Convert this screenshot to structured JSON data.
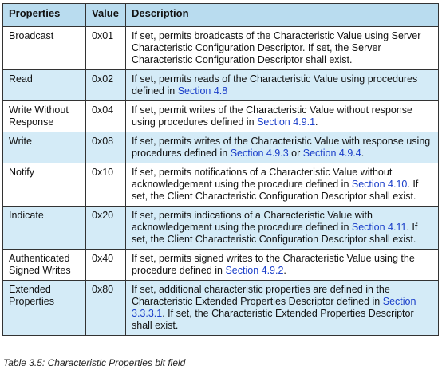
{
  "table": {
    "headers": {
      "properties": "Properties",
      "value": "Value",
      "description": "Description"
    },
    "rows": [
      {
        "property": "Broadcast",
        "value": "0x01",
        "desc": [
          {
            "t": "If set, permits broadcasts of the Characteristic Value using Server Characteristic Configuration Descriptor. If set, the Server Characteristic Configuration Descriptor shall exist."
          }
        ]
      },
      {
        "property": "Read",
        "value": "0x02",
        "desc": [
          {
            "t": "If set, permits reads of the Characteristic Value using procedures defined in "
          },
          {
            "t": "Section 4.8",
            "link": true
          }
        ]
      },
      {
        "property": "Write Without Response",
        "value": "0x04",
        "desc": [
          {
            "t": "If set, permit writes of the Characteristic Value without response using procedures defined in "
          },
          {
            "t": "Section 4.9.1",
            "link": true
          },
          {
            "t": "."
          }
        ]
      },
      {
        "property": "Write",
        "value": "0x08",
        "desc": [
          {
            "t": "If set, permits writes of the Characteristic Value with response using procedures defined in "
          },
          {
            "t": "Section 4.9.3",
            "link": true
          },
          {
            "t": " or "
          },
          {
            "t": "Section 4.9.4",
            "link": true
          },
          {
            "t": "."
          }
        ]
      },
      {
        "property": "Notify",
        "value": "0x10",
        "desc": [
          {
            "t": "If set, permits notifications of a Characteristic Value without acknowledgement using the procedure defined in "
          },
          {
            "t": "Section 4.10",
            "link": true
          },
          {
            "t": ". If set, the Client Characteristic Configuration Descriptor shall exist."
          }
        ]
      },
      {
        "property": "Indicate",
        "value": "0x20",
        "desc": [
          {
            "t": "If set, permits indications of a Characteristic Value with acknowledgement using the procedure defined in "
          },
          {
            "t": "Section 4.11",
            "link": true
          },
          {
            "t": ". If set, the Client Characteristic Configuration Descriptor shall exist."
          }
        ]
      },
      {
        "property": "Authenticated Signed Writes",
        "value": "0x40",
        "desc": [
          {
            "t": "If set, permits signed writes to the Characteristic Value using the procedure defined in "
          },
          {
            "t": "Section 4.9.2",
            "link": true
          },
          {
            "t": "."
          }
        ]
      },
      {
        "property": "Extended Properties",
        "value": "0x80",
        "desc": [
          {
            "t": "If set, additional characteristic properties are defined in the Characteristic Extended Properties Descriptor defined in "
          },
          {
            "t": "Section 3.3.3.1",
            "link": true
          },
          {
            "t": ". If set, the Characteristic Extended Properties Descriptor shall exist."
          }
        ]
      }
    ]
  },
  "caption": "Table 3.5:  Characteristic Properties bit field",
  "colors": {
    "header_bg": "#b9dcef",
    "alt_row_bg": "#d4ebf7",
    "link": "#1a3ec9",
    "border": "#333333"
  }
}
